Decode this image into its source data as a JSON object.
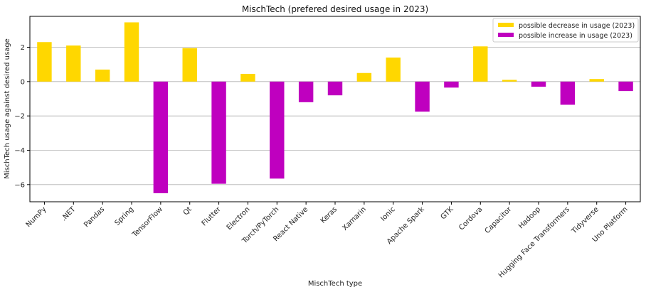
{
  "chart_data": {
    "type": "bar",
    "title": "MischTech (prefered desired usage in 2023)",
    "xlabel": "MischTech type",
    "ylabel": "MischTech usage against desired usage",
    "ylim": [
      -7,
      3.8
    ],
    "yticks": [
      -6,
      -4,
      -2,
      0,
      2
    ],
    "ytick_labels": [
      "−6",
      "−4",
      "−2",
      "0",
      "2"
    ],
    "grid": "horizontal",
    "legend_position": "top-right",
    "categories": [
      "NumPy",
      ".NET",
      "Pandas",
      "Spring",
      "TensorFlow",
      "Qt",
      "Flutter",
      "Electron",
      "Torch/PyTorch",
      "React Native",
      "Keras",
      "Xamarin",
      "Ionic",
      "Apache Spark",
      "GTK",
      "Cordova",
      "Capacitor",
      "Hadoop",
      "Hugging Face Transformers",
      "Tidyverse",
      "Uno Platform"
    ],
    "series": [
      {
        "name": "possible decrease in usage (2023)",
        "color": "#FFD700",
        "values": [
          2.3,
          2.1,
          0.7,
          3.45,
          null,
          1.95,
          null,
          0.45,
          null,
          null,
          null,
          0.5,
          1.4,
          null,
          null,
          2.05,
          0.1,
          null,
          null,
          0.15,
          null
        ]
      },
      {
        "name": "possible increase in usage (2023)",
        "color": "#BF00BF",
        "values": [
          null,
          null,
          null,
          null,
          -6.5,
          null,
          -5.95,
          null,
          -5.65,
          -1.2,
          -0.8,
          null,
          null,
          -1.75,
          -0.35,
          null,
          null,
          -0.3,
          -1.35,
          null,
          -0.55
        ]
      }
    ]
  }
}
